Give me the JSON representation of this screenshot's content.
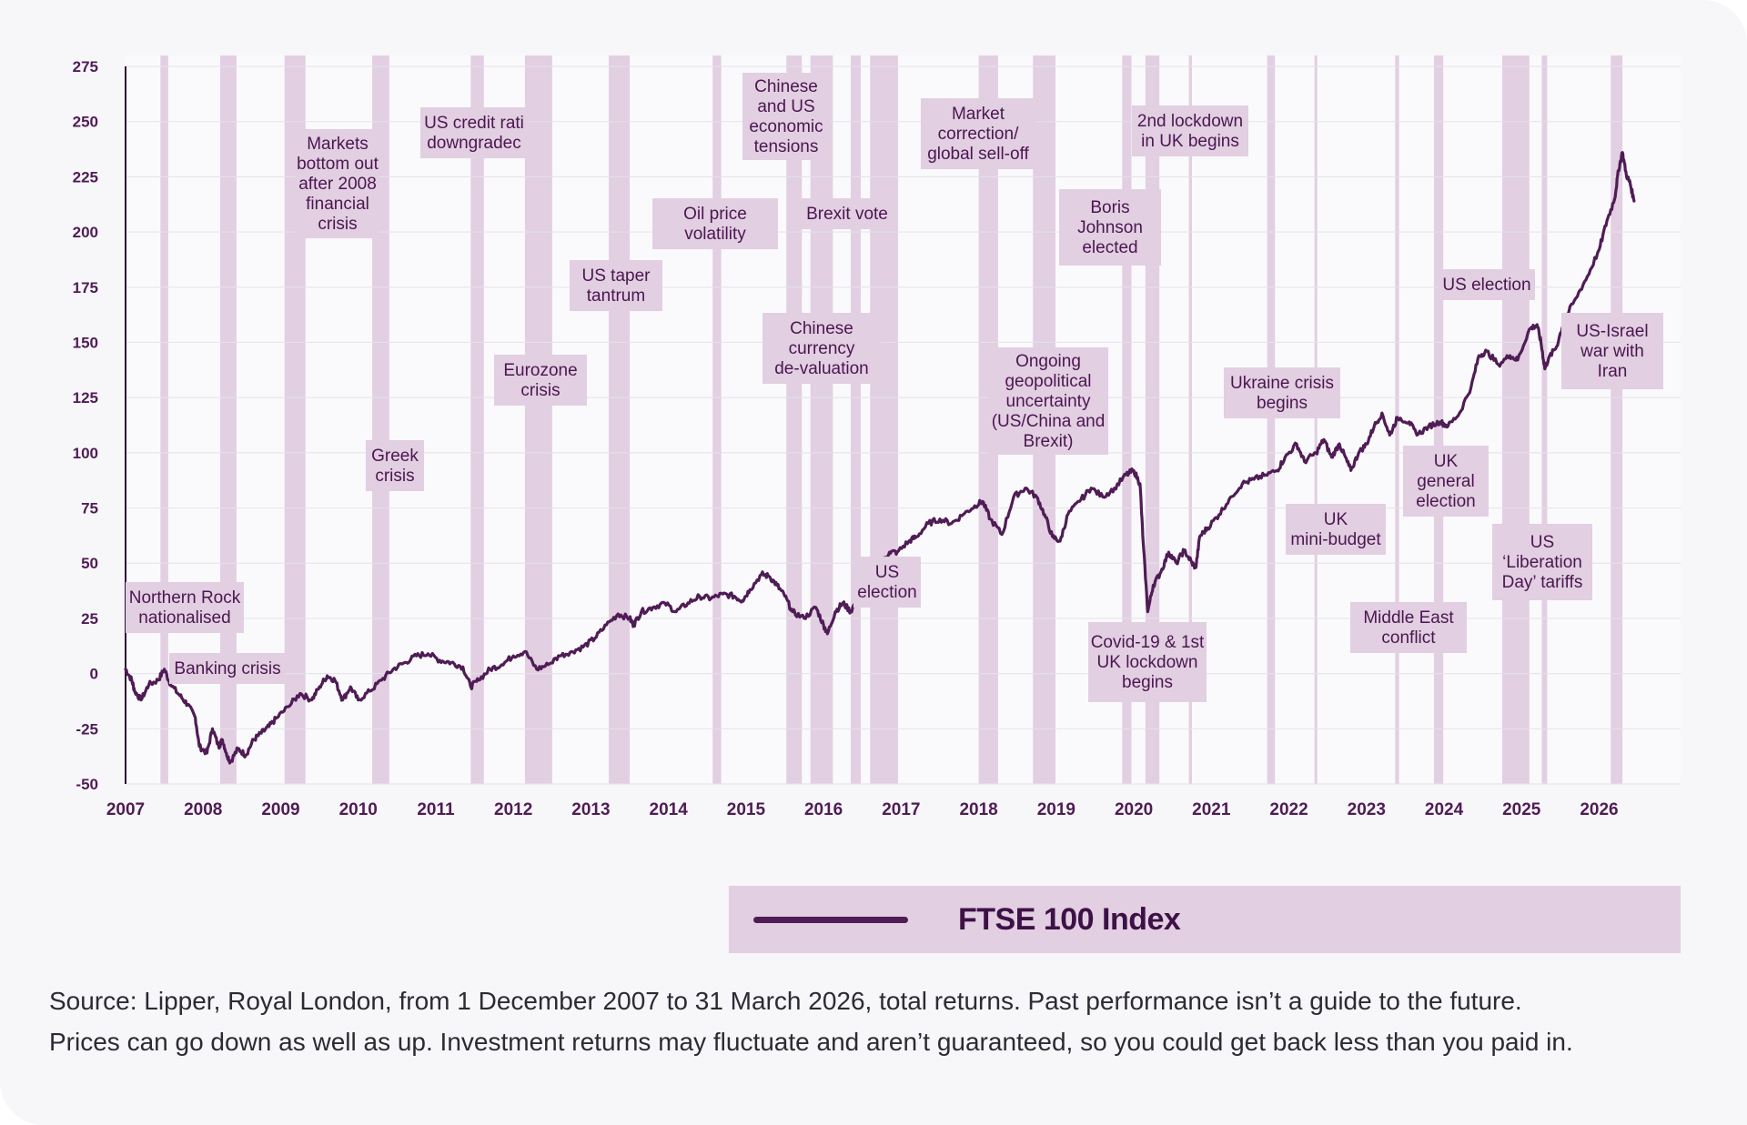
{
  "chart_data": {
    "type": "line",
    "title": "",
    "xlabel": "",
    "ylabel": "",
    "ylim": [
      -50,
      275
    ],
    "xlim": [
      2007.0,
      2027.05
    ],
    "y_ticks": [
      "275",
      "250",
      "225",
      "200",
      "175",
      "150",
      "125",
      "100",
      "75",
      "50",
      "25",
      "0",
      "-25",
      "-50"
    ],
    "x_ticks": [
      "2007",
      "2008",
      "2009",
      "2010",
      "2011",
      "2012",
      "2013",
      "2014",
      "2015",
      "2016",
      "2017",
      "2018",
      "2019",
      "2020",
      "2021",
      "2022",
      "2023",
      "2024",
      "2025",
      "2026"
    ],
    "grid": "horizontal",
    "legend_position": "bottom-right",
    "series": [
      {
        "name": "FTSE 100 Index",
        "color": "#4f1c55",
        "points": [
          [
            2007.0,
            2
          ],
          [
            2007.08,
            -3
          ],
          [
            2007.12,
            -8
          ],
          [
            2007.2,
            -12
          ],
          [
            2007.3,
            -5
          ],
          [
            2007.42,
            -3
          ],
          [
            2007.5,
            2
          ],
          [
            2007.58,
            -5
          ],
          [
            2007.7,
            -10
          ],
          [
            2007.8,
            -14
          ],
          [
            2007.9,
            -20
          ],
          [
            2007.95,
            -33
          ],
          [
            2008.05,
            -36
          ],
          [
            2008.12,
            -25
          ],
          [
            2008.2,
            -33
          ],
          [
            2008.25,
            -30
          ],
          [
            2008.3,
            -36
          ],
          [
            2008.35,
            -40
          ],
          [
            2008.45,
            -34
          ],
          [
            2008.55,
            -37
          ],
          [
            2008.65,
            -30
          ],
          [
            2008.75,
            -27
          ],
          [
            2008.85,
            -24
          ],
          [
            2008.95,
            -20
          ],
          [
            2009.1,
            -15
          ],
          [
            2009.25,
            -9
          ],
          [
            2009.4,
            -12
          ],
          [
            2009.5,
            -6
          ],
          [
            2009.6,
            -1
          ],
          [
            2009.7,
            -3
          ],
          [
            2009.8,
            -12
          ],
          [
            2009.9,
            -6
          ],
          [
            2010.0,
            -12
          ],
          [
            2010.15,
            -8
          ],
          [
            2010.3,
            -3
          ],
          [
            2010.45,
            2
          ],
          [
            2010.6,
            5
          ],
          [
            2010.75,
            8
          ],
          [
            2010.9,
            9
          ],
          [
            2011.05,
            6
          ],
          [
            2011.2,
            5
          ],
          [
            2011.35,
            3
          ],
          [
            2011.45,
            -6
          ],
          [
            2011.55,
            -3
          ],
          [
            2011.7,
            2
          ],
          [
            2011.85,
            4
          ],
          [
            2012.0,
            8
          ],
          [
            2012.15,
            10
          ],
          [
            2012.3,
            2
          ],
          [
            2012.45,
            4
          ],
          [
            2012.6,
            8
          ],
          [
            2012.75,
            10
          ],
          [
            2012.9,
            12
          ],
          [
            2013.05,
            16
          ],
          [
            2013.2,
            22
          ],
          [
            2013.35,
            27
          ],
          [
            2013.5,
            25
          ],
          [
            2013.55,
            22
          ],
          [
            2013.65,
            28
          ],
          [
            2013.8,
            30
          ],
          [
            2013.95,
            32
          ],
          [
            2014.1,
            28
          ],
          [
            2014.25,
            32
          ],
          [
            2014.4,
            35
          ],
          [
            2014.55,
            34
          ],
          [
            2014.7,
            36
          ],
          [
            2014.85,
            35
          ],
          [
            2014.95,
            33
          ],
          [
            2015.05,
            38
          ],
          [
            2015.2,
            45
          ],
          [
            2015.3,
            44
          ],
          [
            2015.4,
            40
          ],
          [
            2015.5,
            35
          ],
          [
            2015.6,
            28
          ],
          [
            2015.75,
            25
          ],
          [
            2015.9,
            30
          ],
          [
            2016.0,
            22
          ],
          [
            2016.05,
            18
          ],
          [
            2016.15,
            28
          ],
          [
            2016.25,
            32
          ],
          [
            2016.35,
            28
          ],
          [
            2016.45,
            35
          ],
          [
            2016.55,
            43
          ],
          [
            2016.7,
            48
          ],
          [
            2016.85,
            55
          ],
          [
            2016.95,
            55
          ],
          [
            2017.1,
            60
          ],
          [
            2017.2,
            62
          ],
          [
            2017.35,
            68
          ],
          [
            2017.5,
            70
          ],
          [
            2017.65,
            68
          ],
          [
            2017.8,
            72
          ],
          [
            2017.95,
            76
          ],
          [
            2018.05,
            78
          ],
          [
            2018.15,
            70
          ],
          [
            2018.3,
            63
          ],
          [
            2018.45,
            80
          ],
          [
            2018.6,
            84
          ],
          [
            2018.75,
            80
          ],
          [
            2018.85,
            72
          ],
          [
            2018.95,
            62
          ],
          [
            2019.05,
            60
          ],
          [
            2019.15,
            72
          ],
          [
            2019.3,
            78
          ],
          [
            2019.45,
            84
          ],
          [
            2019.6,
            80
          ],
          [
            2019.75,
            84
          ],
          [
            2019.9,
            90
          ],
          [
            2020.0,
            92
          ],
          [
            2020.08,
            86
          ],
          [
            2020.12,
            60
          ],
          [
            2020.18,
            28
          ],
          [
            2020.25,
            40
          ],
          [
            2020.35,
            46
          ],
          [
            2020.45,
            55
          ],
          [
            2020.55,
            50
          ],
          [
            2020.65,
            56
          ],
          [
            2020.75,
            50
          ],
          [
            2020.8,
            48
          ],
          [
            2020.85,
            62
          ],
          [
            2020.95,
            66
          ],
          [
            2021.1,
            72
          ],
          [
            2021.25,
            80
          ],
          [
            2021.4,
            86
          ],
          [
            2021.55,
            88
          ],
          [
            2021.7,
            90
          ],
          [
            2021.85,
            92
          ],
          [
            2021.95,
            98
          ],
          [
            2022.1,
            104
          ],
          [
            2022.2,
            96
          ],
          [
            2022.35,
            100
          ],
          [
            2022.45,
            106
          ],
          [
            2022.55,
            98
          ],
          [
            2022.65,
            104
          ],
          [
            2022.75,
            96
          ],
          [
            2022.8,
            92
          ],
          [
            2022.9,
            100
          ],
          [
            2023.0,
            104
          ],
          [
            2023.1,
            112
          ],
          [
            2023.2,
            118
          ],
          [
            2023.3,
            108
          ],
          [
            2023.4,
            116
          ],
          [
            2023.55,
            114
          ],
          [
            2023.65,
            108
          ],
          [
            2023.8,
            112
          ],
          [
            2023.95,
            114
          ],
          [
            2024.05,
            112
          ],
          [
            2024.2,
            118
          ],
          [
            2024.35,
            130
          ],
          [
            2024.45,
            144
          ],
          [
            2024.55,
            146
          ],
          [
            2024.7,
            140
          ],
          [
            2024.85,
            144
          ],
          [
            2024.95,
            142
          ],
          [
            2025.1,
            156
          ],
          [
            2025.2,
            158
          ],
          [
            2025.25,
            150
          ],
          [
            2025.3,
            138
          ],
          [
            2025.35,
            143
          ],
          [
            2025.45,
            148
          ],
          [
            2025.55,
            160
          ],
          [
            2025.7,
            170
          ],
          [
            2025.85,
            180
          ],
          [
            2026.0,
            192
          ],
          [
            2026.1,
            205
          ],
          [
            2026.2,
            215
          ],
          [
            2026.25,
            228
          ],
          [
            2026.3,
            236
          ],
          [
            2026.35,
            226
          ],
          [
            2026.4,
            222
          ],
          [
            2026.45,
            214
          ]
        ]
      }
    ],
    "events": [
      {
        "start": 2007.45,
        "end": 2007.55
      },
      {
        "start": 2008.22,
        "end": 2008.43
      },
      {
        "start": 2009.05,
        "end": 2009.32
      },
      {
        "start": 2010.18,
        "end": 2010.4
      },
      {
        "start": 2011.45,
        "end": 2011.62
      },
      {
        "start": 2012.15,
        "end": 2012.5
      },
      {
        "start": 2013.23,
        "end": 2013.5
      },
      {
        "start": 2014.57,
        "end": 2014.68
      },
      {
        "start": 2015.52,
        "end": 2015.72
      },
      {
        "start": 2015.83,
        "end": 2016.12
      },
      {
        "start": 2016.35,
        "end": 2016.48
      },
      {
        "start": 2016.6,
        "end": 2016.96
      },
      {
        "start": 2018.0,
        "end": 2018.25
      },
      {
        "start": 2018.7,
        "end": 2018.99
      },
      {
        "start": 2019.85,
        "end": 2019.97
      },
      {
        "start": 2020.15,
        "end": 2020.33
      },
      {
        "start": 2020.71,
        "end": 2020.75
      },
      {
        "start": 2021.72,
        "end": 2021.82
      },
      {
        "start": 2022.33,
        "end": 2022.36
      },
      {
        "start": 2023.37,
        "end": 2023.42
      },
      {
        "start": 2023.87,
        "end": 2023.99
      },
      {
        "start": 2024.75,
        "end": 2025.1
      },
      {
        "start": 2025.26,
        "end": 2025.33
      },
      {
        "start": 2026.15,
        "end": 2026.3
      }
    ],
    "annotations": [
      {
        "lines": [
          "Northern Rock",
          "nationalised"
        ]
      },
      {
        "lines": [
          "Banking crisis"
        ]
      },
      {
        "lines": [
          "Markets",
          "bottom out",
          "after 2008",
          "financial",
          "crisis"
        ]
      },
      {
        "lines": [
          "Greek",
          "crisis"
        ]
      },
      {
        "lines": [
          "US credit rati",
          "downgradec"
        ]
      },
      {
        "lines": [
          "Eurozone",
          "crisis"
        ]
      },
      {
        "lines": [
          "US taper",
          "tantrum"
        ]
      },
      {
        "lines": [
          "Oil price",
          "volatility"
        ]
      },
      {
        "lines": [
          "Chinese",
          "and US",
          "economic",
          "tensions"
        ]
      },
      {
        "lines": [
          "Brexit vote"
        ]
      },
      {
        "lines": [
          "Chinese",
          "currency",
          "de-valuation"
        ]
      },
      {
        "lines": [
          "US",
          "election"
        ]
      },
      {
        "lines": [
          "Market",
          "correction/",
          "global sell-off"
        ]
      },
      {
        "lines": [
          "Ongoing",
          "geopolitical",
          "uncertainty",
          "(US/China and",
          "Brexit)"
        ]
      },
      {
        "lines": [
          "Boris",
          "Johnson",
          "elected"
        ]
      },
      {
        "lines": [
          "2nd lockdown",
          "in UK begins"
        ]
      },
      {
        "lines": [
          "Covid-19 & 1st",
          "UK lockdown",
          "begins"
        ]
      },
      {
        "lines": [
          "Ukraine crisis",
          "begins"
        ]
      },
      {
        "lines": [
          "UK",
          "mini-budget"
        ]
      },
      {
        "lines": [
          "Middle East",
          "conflict"
        ]
      },
      {
        "lines": [
          "UK",
          "general",
          "election"
        ]
      },
      {
        "lines": [
          "US election"
        ]
      },
      {
        "lines": [
          "US",
          "‘Liberation",
          "Day’ tariffs"
        ]
      },
      {
        "lines": [
          "US-Israel",
          "war with",
          "Iran"
        ]
      }
    ]
  },
  "legend": {
    "label": "FTSE 100 Index",
    "color": "#4f1c55"
  },
  "footnote": {
    "line1": "Source: Lipper, Royal London, from 1 December 2007 to 31 March 2026, total returns. Past performance isn’t a guide to the future.",
    "line2": "Prices can go down as well as up. Investment returns may fluctuate and aren’t guaranteed, so you could get back less than you paid in."
  },
  "colors": {
    "background": "#f7f6f9",
    "event_band": "#e2cfe2",
    "annotation_box": "#e2cfe2",
    "line": "#4f1c55",
    "grid": "#e4e3e8",
    "text": "#4b1650"
  }
}
